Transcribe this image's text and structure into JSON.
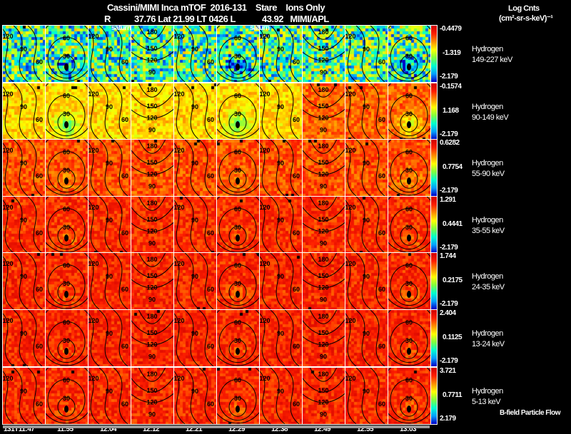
{
  "header": {
    "title": "Cassini/MIMI Inca mTOF  2016-131    Stare    Ions Only",
    "subtitle_r": "R",
    "subtitle_rest": "37.76 Lat 21.99 LT 0426 L            43.92   MIMI/APL",
    "saturn_label": "saturn",
    "colorbar_title": "Log Cnts",
    "colorbar_units": "(cm²-sr-s-keV)⁻¹"
  },
  "footer": {
    "legend": "B-field Particle Flow"
  },
  "chart_data": {
    "type": "heatmap",
    "title": "Cassini/MIMI Inca mTOF 2016-131 Stare Ions Only",
    "x_tick_labels": [
      "131T11:47",
      "11:55",
      "12:04",
      "12:12",
      "12:21",
      "12:29",
      "12:38",
      "12:49",
      "12:55",
      "13:03"
    ],
    "rows": [
      {
        "species": "Hydrogen",
        "energy": "149-227 keV",
        "max": "-0.4479",
        "mid": "-1.319",
        "min": "-2.179",
        "level": 0.35
      },
      {
        "species": "Hydrogen",
        "energy": "90-149 keV",
        "max": "-0.1574",
        "mid": "1.168",
        "min": "-2.179",
        "level": 0.62
      },
      {
        "species": "Hydrogen",
        "energy": "55-90 keV",
        "max": "0.6282",
        "mid": "0.7754",
        "min": "-2.179",
        "level": 0.8
      },
      {
        "species": "Hydrogen",
        "energy": "35-55 keV",
        "max": "1.291",
        "mid": "0.4441",
        "min": "-2.179",
        "level": 0.85
      },
      {
        "species": "Hydrogen",
        "energy": "24-35 keV",
        "max": "1.744",
        "mid": "0.2175",
        "min": "-2.179",
        "level": 0.86
      },
      {
        "species": "Hydrogen",
        "energy": "13-24 keV",
        "max": "2.404",
        "mid": "0.1125",
        "min": "-2.179",
        "level": 0.87
      },
      {
        "species": "Hydrogen",
        "energy": "5-13 keV",
        "max": "3.721",
        "mid": "0.7711",
        "min": "2.179",
        "level": 0.86
      }
    ],
    "column_contour_types": [
      "wave",
      "center",
      "wave",
      "top",
      "wave",
      "center",
      "wave",
      "top",
      "wave",
      "center"
    ],
    "contour_labels": {
      "center": [
        "0",
        "30",
        "60",
        "90"
      ],
      "top": [
        "180",
        "150",
        "120",
        "90"
      ],
      "wave": [
        "120",
        "90",
        "60"
      ]
    }
  }
}
